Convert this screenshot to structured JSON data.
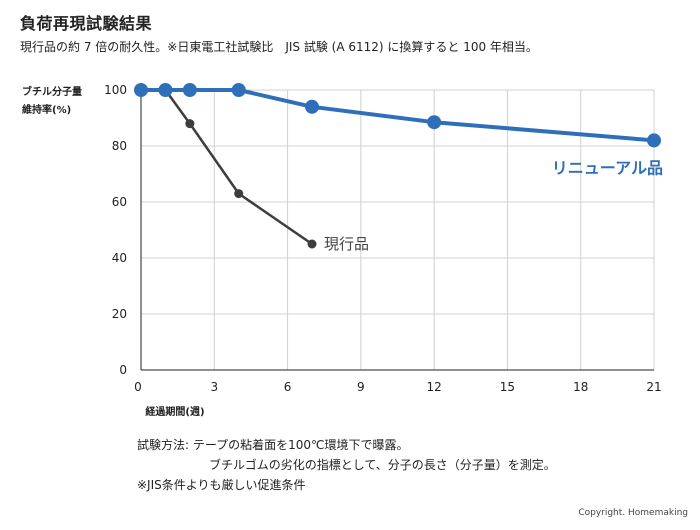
{
  "title": "負荷再現試験結果",
  "subtitle": "現行品の約 7 倍の耐久性。※日東電工社試験比　JIS 試験 (A 6112) に換算すると 100 年相当。",
  "notes": {
    "line1": "試験方法:  テープの粘着面を100℃環境下で曝露。",
    "line2": "ブチルゴムの劣化の指標として、分子の長さ（分子量）を測定。",
    "line3": "※JIS条件よりも厳しい促進条件"
  },
  "copyright": "Copyright. Homemaking",
  "chart_data": {
    "type": "line",
    "ylabel_line1": "ブチル分子量",
    "ylabel_line2": "維持率(%)",
    "xlabel": "経過期間(週)",
    "x_ticks": [
      0,
      3,
      6,
      9,
      12,
      15,
      18,
      21
    ],
    "y_ticks": [
      0,
      20,
      40,
      60,
      80,
      100
    ],
    "xlim": [
      0,
      21
    ],
    "ylim": [
      0,
      100
    ],
    "grid": true,
    "series": [
      {
        "name": "リニューアル品",
        "color": "#2f6fba",
        "x": [
          0,
          1,
          2,
          4,
          7,
          12,
          21
        ],
        "y": [
          100,
          100,
          100,
          100,
          94,
          88.5,
          82
        ]
      },
      {
        "name": "現行品",
        "color": "#3d3d3d",
        "x": [
          0,
          1,
          2,
          4,
          7
        ],
        "y": [
          100,
          100,
          88,
          63,
          45
        ]
      }
    ]
  }
}
